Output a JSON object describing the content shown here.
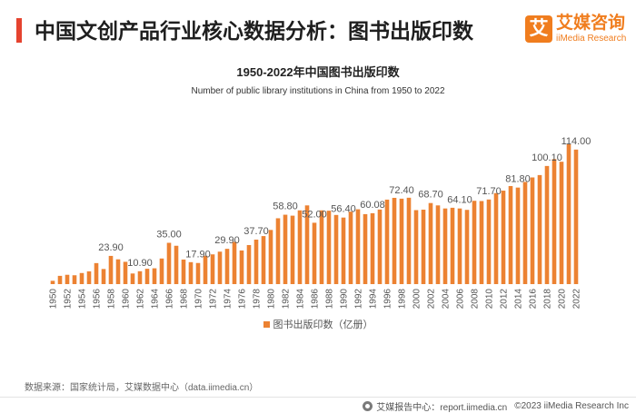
{
  "header": {
    "title": "中国文创产品行业核心数据分析：图书出版印数",
    "logo_mark": "艾",
    "brand_cn": "艾媒咨询",
    "brand_en": "iiMedia Research"
  },
  "colors": {
    "title_accent": "#E5432F",
    "bar": "#EC8232",
    "brand": "#F07D1E"
  },
  "chart_data": {
    "type": "bar",
    "title": "1950-2022年中国图书出版印数",
    "subtitle": "Number of public library institutions in China from 1950 to 2022",
    "x": [
      1950,
      1951,
      1952,
      1953,
      1954,
      1955,
      1956,
      1957,
      1958,
      1959,
      1960,
      1961,
      1962,
      1963,
      1964,
      1965,
      1966,
      1967,
      1968,
      1969,
      1970,
      1971,
      1972,
      1973,
      1974,
      1975,
      1976,
      1977,
      1978,
      1979,
      1980,
      1981,
      1982,
      1983,
      1984,
      1985,
      1986,
      1987,
      1988,
      1989,
      1990,
      1991,
      1992,
      1993,
      1994,
      1995,
      1996,
      1997,
      1998,
      1999,
      2000,
      2001,
      2002,
      2003,
      2004,
      2005,
      2006,
      2007,
      2008,
      2009,
      2010,
      2011,
      2012,
      2013,
      2014,
      2015,
      2016,
      2017,
      2018,
      2019,
      2020,
      2021,
      2022
    ],
    "series": [
      {
        "name": "图书出版印数（亿册）",
        "values": [
          2.8,
          7.0,
          7.9,
          7.5,
          9.4,
          10.8,
          17.8,
          12.8,
          23.9,
          21.0,
          18.9,
          9.0,
          10.9,
          13.0,
          13.4,
          21.7,
          35.0,
          32.5,
          20.8,
          18.6,
          17.9,
          24.0,
          25.2,
          27.5,
          29.9,
          35.8,
          28.5,
          33.1,
          37.7,
          40.7,
          45.9,
          55.8,
          58.8,
          58.0,
          62.5,
          66.7,
          52.0,
          62.5,
          62.2,
          58.6,
          56.4,
          61.4,
          63.4,
          59.3,
          60.08,
          63.2,
          71.6,
          73.1,
          72.4,
          73.2,
          62.7,
          63.1,
          68.7,
          66.7,
          64.1,
          64.7,
          64.1,
          62.9,
          70.6,
          70.4,
          71.7,
          77.1,
          79.2,
          83.1,
          81.8,
          86.6,
          90.4,
          92.4,
          100.1,
          106.0,
          103.7,
          118.6,
          114.0
        ]
      }
    ],
    "data_labels": {
      "1958": "23.90",
      "1962": "10.90",
      "1966": "35.00",
      "1970": "17.90",
      "1974": "29.90",
      "1978": "37.70",
      "1982": "58.80",
      "1986": "52.00",
      "1990": "56.40",
      "1994": "60.08",
      "1998": "72.40",
      "2002": "68.70",
      "2006": "64.10",
      "2010": "71.70",
      "2014": "81.80",
      "2018": "100.10",
      "2022": "114.00"
    },
    "x_tick_labels": [
      "1950",
      "1952",
      "1954",
      "1956",
      "1958",
      "1960",
      "1962",
      "1964",
      "1966",
      "1968",
      "1970",
      "1972",
      "1974",
      "1976",
      "1978",
      "1980",
      "1982",
      "1984",
      "1986",
      "1988",
      "1990",
      "1992",
      "1994",
      "1996",
      "1998",
      "2000",
      "2002",
      "2004",
      "2006",
      "2008",
      "2010",
      "2012",
      "2014",
      "2016",
      "2018",
      "2020",
      "2022"
    ],
    "ylim": [
      0,
      120
    ],
    "grid": false,
    "legend_position": "bottom"
  },
  "footer": {
    "source": "数据来源：国家统计局，艾媒数据中心（data.iimedia.cn）",
    "report_icon": "report-center-icon",
    "report_center": "艾媒报告中心：report.iimedia.cn",
    "copyright": "©2023 iiMedia Research Inc"
  }
}
